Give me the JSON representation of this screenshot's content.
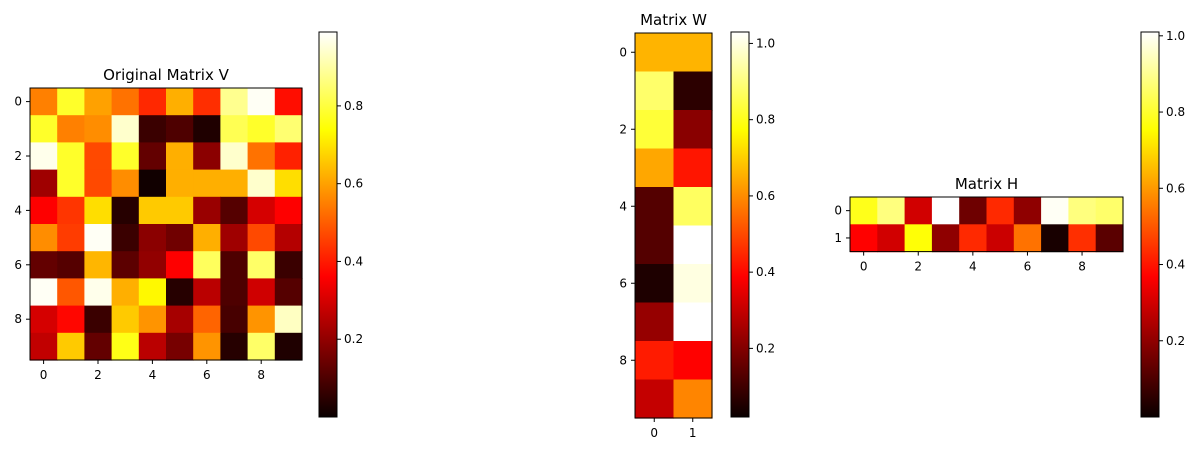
{
  "colormap": [
    "#000000",
    "#ff0000",
    "#ffff00",
    "#ffffff"
  ],
  "chart_data": [
    {
      "type": "heatmap",
      "title": "Original Matrix V",
      "xticks": [
        "0",
        "2",
        "4",
        "6",
        "8"
      ],
      "yticks": [
        "0",
        "2",
        "4",
        "6",
        "8"
      ],
      "colorbar": {
        "vmin": 0.0,
        "vmax": 0.99,
        "ticks": [
          "0.2",
          "0.4",
          "0.6",
          "0.8"
        ]
      },
      "values": [
        [
          0.55,
          0.78,
          0.6,
          0.53,
          0.42,
          0.62,
          0.43,
          0.88,
          0.98,
          0.38
        ],
        [
          0.78,
          0.55,
          0.57,
          0.94,
          0.07,
          0.1,
          0.03,
          0.82,
          0.78,
          0.85
        ],
        [
          0.97,
          0.78,
          0.47,
          0.78,
          0.13,
          0.62,
          0.19,
          0.94,
          0.53,
          0.41
        ],
        [
          0.22,
          0.78,
          0.47,
          0.57,
          0.01,
          0.62,
          0.62,
          0.62,
          0.94,
          0.69
        ],
        [
          0.36,
          0.44,
          0.69,
          0.04,
          0.66,
          0.66,
          0.21,
          0.11,
          0.3,
          0.36
        ],
        [
          0.57,
          0.45,
          0.98,
          0.07,
          0.19,
          0.15,
          0.62,
          0.22,
          0.47,
          0.25
        ],
        [
          0.13,
          0.11,
          0.63,
          0.12,
          0.2,
          0.36,
          0.83,
          0.1,
          0.84,
          0.07
        ],
        [
          0.98,
          0.49,
          0.97,
          0.62,
          0.73,
          0.04,
          0.26,
          0.1,
          0.29,
          0.11
        ],
        [
          0.3,
          0.37,
          0.07,
          0.66,
          0.58,
          0.23,
          0.51,
          0.09,
          0.58,
          0.93
        ],
        [
          0.27,
          0.66,
          0.13,
          0.76,
          0.26,
          0.16,
          0.58,
          0.04,
          0.84,
          0.03
        ]
      ]
    },
    {
      "type": "heatmap",
      "title": "Matrix W",
      "xticks": [
        "0",
        "1"
      ],
      "yticks": [
        "0",
        "2",
        "4",
        "6",
        "8"
      ],
      "colorbar": {
        "vmin": 0.02,
        "vmax": 1.03,
        "ticks": [
          "0.2",
          "0.4",
          "0.6",
          "0.8",
          "1.0"
        ]
      },
      "values": [
        [
          0.66,
          0.66
        ],
        [
          0.88,
          0.07
        ],
        [
          0.83,
          0.21
        ],
        [
          0.64,
          0.42
        ],
        [
          0.13,
          0.87
        ],
        [
          0.13,
          1.03
        ],
        [
          0.05,
          1.0
        ],
        [
          0.23,
          1.03
        ],
        [
          0.43,
          0.39
        ],
        [
          0.3,
          0.59
        ]
      ]
    },
    {
      "type": "heatmap",
      "title": "Matrix H",
      "xticks": [
        "0",
        "2",
        "4",
        "6",
        "8"
      ],
      "yticks": [
        "0",
        "1"
      ],
      "colorbar": {
        "vmin": 0.0,
        "vmax": 1.01,
        "ticks": [
          "0.2",
          "0.4",
          "0.6",
          "0.8",
          "1.0"
        ]
      },
      "values": [
        [
          0.78,
          0.88,
          0.3,
          1.01,
          0.15,
          0.43,
          0.2,
          1.0,
          0.88,
          0.86
        ],
        [
          0.37,
          0.3,
          0.76,
          0.2,
          0.43,
          0.29,
          0.54,
          0.02,
          0.44,
          0.12
        ]
      ]
    }
  ]
}
